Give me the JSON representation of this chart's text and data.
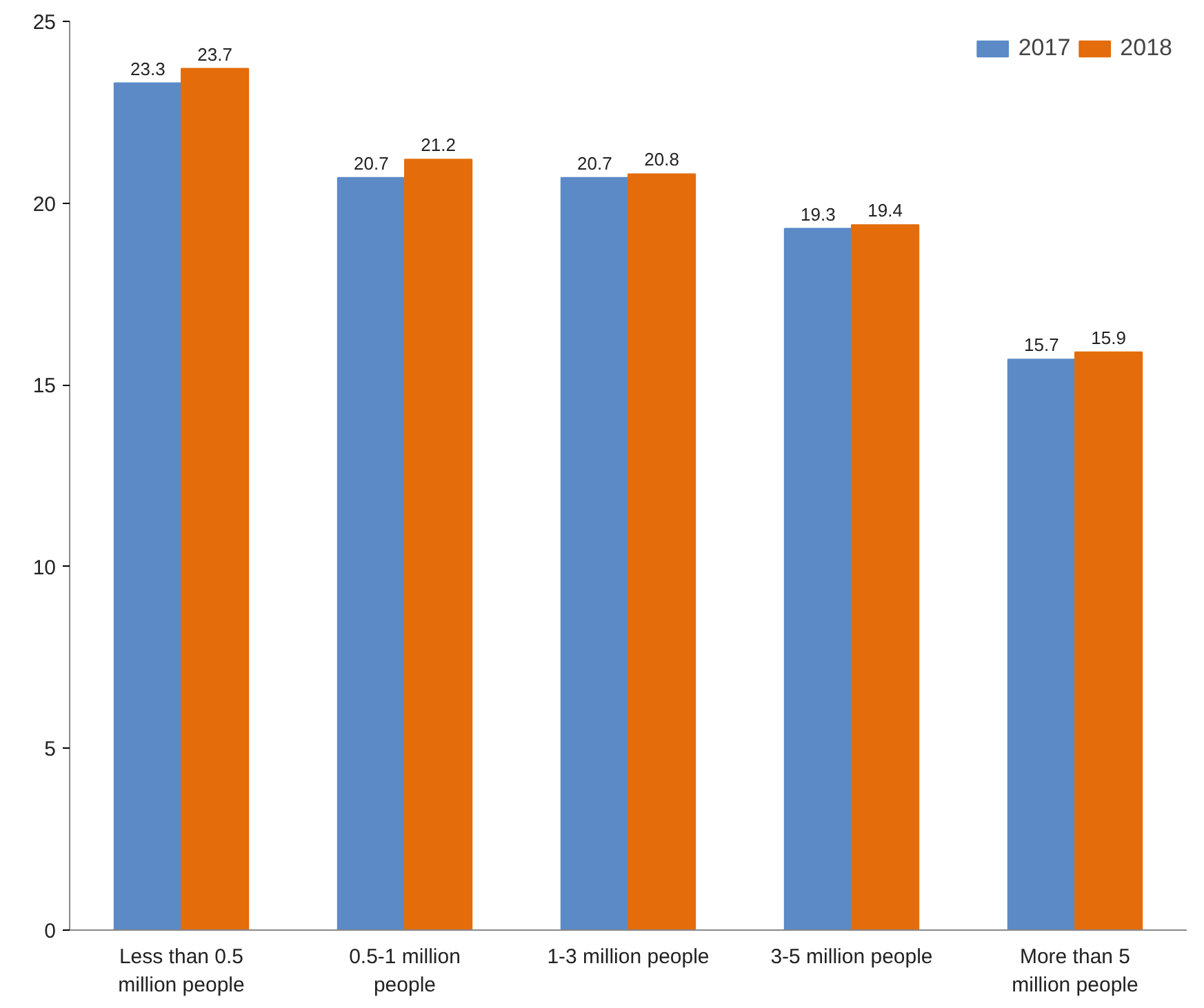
{
  "chart_data": {
    "type": "bar",
    "categories": [
      "Less than 0.5 million people",
      "0.5-1 million people",
      "1-3 million people",
      "3-5 million people",
      "More than 5 million people"
    ],
    "series": [
      {
        "name": "2017",
        "color": "#5b8ac6",
        "values": [
          23.3,
          20.7,
          20.7,
          19.3,
          15.7
        ]
      },
      {
        "name": "2018",
        "color": "#e46c0a",
        "values": [
          23.7,
          21.2,
          20.8,
          19.4,
          15.9
        ]
      }
    ],
    "ylim": [
      0,
      25
    ],
    "yticks": [
      0,
      5,
      10,
      15,
      20,
      25
    ],
    "grid": false,
    "legend": "top right",
    "data_labels": true
  }
}
